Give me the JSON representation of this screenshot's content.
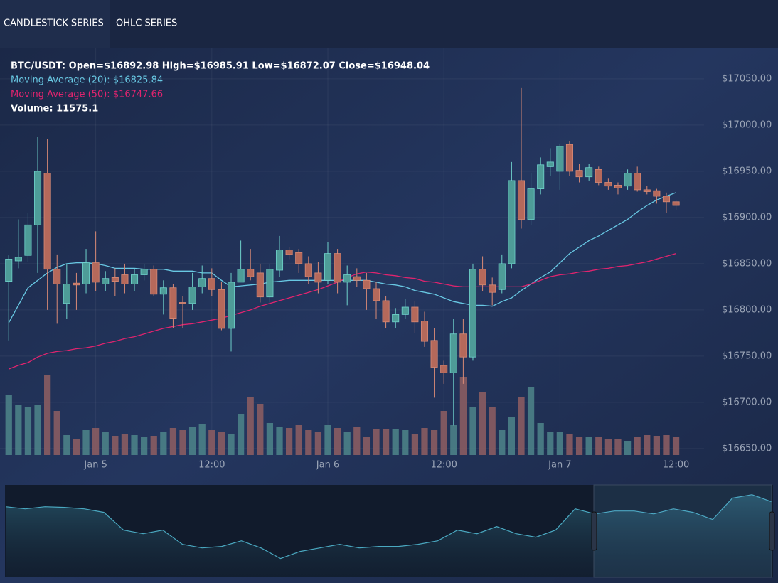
{
  "tabs": [
    "CANDLESTICK SERIES",
    "OHLC SERIES"
  ],
  "chart_data": [
    {
      "type": "candlestick",
      "legend_lines": [
        "BTC/USDT: Open=$16892.98 High=$16985.91 Low=$16872.07 Close=$16948.04",
        "Moving Average (20): $16825.84",
        "Moving Average (50): $16747.66",
        "Volume: 11575.1"
      ],
      "x": [
        0,
        1,
        2,
        3,
        4,
        5,
        6,
        7,
        8,
        9,
        10,
        11,
        12,
        13,
        14,
        15,
        16,
        17,
        18,
        19,
        20,
        21,
        22,
        23,
        24,
        25,
        26,
        27,
        28,
        29,
        30,
        31,
        32,
        33,
        34,
        35,
        36,
        37,
        38,
        39,
        40,
        41,
        42,
        43,
        44,
        45,
        46,
        47,
        48,
        49,
        50,
        51,
        52,
        53,
        54,
        55,
        56,
        57,
        58,
        59,
        60,
        61,
        62,
        63,
        64,
        65,
        66,
        67,
        68,
        69
      ],
      "xlim": [
        -0.9,
        71.9
      ],
      "xticks": [
        {
          "value": 9,
          "label": "Jan 5"
        },
        {
          "value": 21,
          "label": "12:00"
        },
        {
          "value": 33,
          "label": "Jan 6"
        },
        {
          "value": 45,
          "label": "12:00"
        },
        {
          "value": 57,
          "label": "Jan 7"
        },
        {
          "value": 69,
          "label": "12:00"
        }
      ],
      "ylim": [
        16643,
        17083
      ],
      "yticks": [
        {
          "value": 16650,
          "label": "$16650.00"
        },
        {
          "value": 16700,
          "label": "$16700.00"
        },
        {
          "value": 16750,
          "label": "$16750.00"
        },
        {
          "value": 16800,
          "label": "$16800.00"
        },
        {
          "value": 16850,
          "label": "$16850.00"
        },
        {
          "value": 16900,
          "label": "$16900.00"
        },
        {
          "value": 16950,
          "label": "$16950.00"
        },
        {
          "value": 17000,
          "label": "$17000.00"
        },
        {
          "value": 17050,
          "label": "$17050.00"
        }
      ],
      "grid": true,
      "up_color": "#4e9c98",
      "down_color": "#b5695b",
      "open": [
        16831,
        16853,
        16859,
        16892,
        16948,
        16844,
        16807,
        16829,
        16828,
        16851,
        16828,
        16835,
        16838,
        16828,
        16838,
        16844,
        16817,
        16824,
        16808,
        16807,
        16825,
        16834,
        16822,
        16780,
        16830,
        16844,
        16840,
        16814,
        16843,
        16865,
        16862,
        16850,
        16840,
        16832,
        16861,
        16830,
        16836,
        16832,
        16823,
        16810,
        16787,
        16795,
        16803,
        16788,
        16767,
        16740,
        16732,
        16774,
        16749,
        16844,
        16827,
        16822,
        16850,
        16940,
        16898,
        16931,
        16955,
        16950,
        16979,
        16951,
        16944,
        16952,
        16938,
        16935,
        16934,
        16948,
        16930,
        16929,
        16923,
        16917
      ],
      "high": [
        16859,
        16898,
        16905,
        16987,
        16985,
        16860,
        16850,
        16840,
        16866,
        16885,
        16842,
        16845,
        16850,
        16845,
        16850,
        16848,
        16832,
        16828,
        16815,
        16840,
        16848,
        16845,
        16830,
        16840,
        16875,
        16866,
        16850,
        16850,
        16880,
        16868,
        16866,
        16858,
        16852,
        16873,
        16866,
        16848,
        16845,
        16840,
        16830,
        16815,
        16802,
        16812,
        16810,
        16798,
        16780,
        16745,
        16790,
        16790,
        16850,
        16858,
        16835,
        16860,
        16960,
        17040,
        16948,
        16965,
        16975,
        16980,
        16983,
        16958,
        16958,
        16955,
        16942,
        16938,
        16952,
        16955,
        16934,
        16931,
        16927,
        16919
      ],
      "low": [
        16767,
        16845,
        16852,
        16840,
        16800,
        16785,
        16790,
        16800,
        16818,
        16820,
        16820,
        16815,
        16818,
        16820,
        16832,
        16815,
        16795,
        16780,
        16780,
        16800,
        16818,
        16815,
        16778,
        16755,
        16830,
        16832,
        16808,
        16808,
        16836,
        16855,
        16840,
        16828,
        16818,
        16828,
        16818,
        16805,
        16825,
        16800,
        16790,
        16780,
        16780,
        16790,
        16775,
        16760,
        16705,
        16720,
        16675,
        16720,
        16745,
        16820,
        16805,
        16818,
        16845,
        16888,
        16892,
        16925,
        16945,
        16930,
        16945,
        16938,
        16940,
        16935,
        16930,
        16925,
        16930,
        16928,
        16925,
        16915,
        16905,
        16908
      ],
      "close": [
        16855,
        16857,
        16892,
        16950,
        16844,
        16828,
        16828,
        16827,
        16851,
        16830,
        16834,
        16831,
        16828,
        16838,
        16844,
        16817,
        16824,
        16791,
        16807,
        16825,
        16834,
        16822,
        16780,
        16830,
        16844,
        16836,
        16814,
        16844,
        16865,
        16860,
        16850,
        16836,
        16830,
        16861,
        16830,
        16838,
        16832,
        16823,
        16810,
        16787,
        16795,
        16803,
        16787,
        16766,
        16738,
        16732,
        16774,
        16749,
        16844,
        16827,
        16819,
        16850,
        16940,
        16898,
        16931,
        16957,
        16960,
        16977,
        16950,
        16944,
        16954,
        16938,
        16934,
        16932,
        16948,
        16930,
        16928,
        16923,
        16917,
        16913
      ],
      "volume": {
        "ylim": [
          0,
          35000
        ],
        "up_color": "#4b8187",
        "down_color": "#8a5c62",
        "values": [
          21250,
          17500,
          16750,
          17500,
          28000,
          15500,
          7000,
          5750,
          8750,
          9500,
          8000,
          6750,
          7500,
          7000,
          6250,
          6750,
          8000,
          9500,
          8750,
          10000,
          10750,
          8750,
          8250,
          7500,
          14500,
          20500,
          18000,
          11250,
          10000,
          9500,
          10500,
          8750,
          8250,
          10500,
          9500,
          8250,
          10000,
          6250,
          9250,
          9250,
          9250,
          8750,
          7500,
          9500,
          8750,
          15500,
          10500,
          27500,
          16750,
          22000,
          16750,
          8750,
          13250,
          20500,
          23750,
          11250,
          8250,
          8000,
          7500,
          6250,
          6250,
          6250,
          5500,
          5500,
          5000,
          6250,
          7000,
          6750,
          7000,
          6250
        ]
      },
      "series": [
        {
          "color": "#68c8e3",
          "values": [
            16786,
            16805,
            16824,
            16832,
            16840,
            16846,
            16850,
            16851,
            16851,
            16850,
            16848,
            16845,
            16845,
            16845,
            16844,
            16844,
            16844,
            16842,
            16842,
            16842,
            16840,
            16840,
            16832,
            16825,
            16826,
            16827,
            16828,
            16830,
            16831,
            16832,
            16832,
            16832,
            16832,
            16832,
            16832,
            16832,
            16832,
            16832,
            16830,
            16828,
            16827,
            16825,
            16821,
            16819,
            16817,
            16813,
            16809,
            16807,
            16805,
            16805,
            16804,
            16809,
            16813,
            16821,
            16828,
            16835,
            16841,
            16851,
            16861,
            16868,
            16875,
            16880,
            16886,
            16892,
            16898,
            16906,
            16913,
            16919,
            16923,
            16927
          ]
        },
        {
          "color": "#e0246e",
          "values": [
            16736,
            16740,
            16743,
            16749,
            16753,
            16755,
            16756,
            16758,
            16759,
            16761,
            16764,
            16766,
            16769,
            16771,
            16774,
            16777,
            16780,
            16782,
            16784,
            16785,
            16787,
            16789,
            16791,
            16794,
            16797,
            16800,
            16804,
            16807,
            16810,
            16813,
            16816,
            16819,
            16822,
            16826,
            16830,
            16835,
            16839,
            16841,
            16840,
            16838,
            16837,
            16835,
            16834,
            16831,
            16830,
            16828,
            16826,
            16825,
            16825,
            16825,
            16825,
            16825,
            16825,
            16825,
            16828,
            16832,
            16836,
            16838,
            16839,
            16841,
            16842,
            16844,
            16845,
            16847,
            16848,
            16850,
            16852,
            16855,
            16858,
            16861
          ]
        }
      ]
    },
    {
      "type": "area",
      "color": "#4aa8c0",
      "ylim": [
        16300,
        17040
      ],
      "values": [
        16865,
        16848,
        16865,
        16860,
        16848,
        16820,
        16678,
        16649,
        16678,
        16564,
        16535,
        16547,
        16592,
        16535,
        16450,
        16507,
        16535,
        16564,
        16535,
        16547,
        16547,
        16564,
        16592,
        16678,
        16649,
        16706,
        16649,
        16621,
        16678,
        16848,
        16808,
        16831,
        16831,
        16808,
        16848,
        16820,
        16763,
        16934,
        16962,
        16905
      ]
    }
  ]
}
